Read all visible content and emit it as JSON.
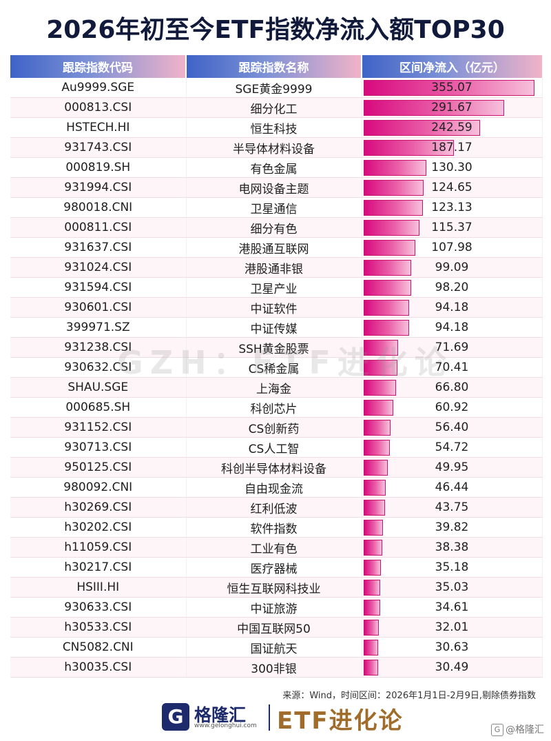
{
  "title": "2026年初至今ETF指数净流入额TOP30",
  "headers": {
    "code": "跟踪指数代码",
    "name": "跟踪指数名称",
    "value": "区间净流入（亿元）"
  },
  "chart_data": {
    "type": "table",
    "value_max": 355.07,
    "rows": [
      {
        "code": "Au9999.SGE",
        "name": "SGE黄金9999",
        "value": 355.07
      },
      {
        "code": "000813.CSI",
        "name": "细分化工",
        "value": 291.67
      },
      {
        "code": "HSTECH.HI",
        "name": "恒生科技",
        "value": 242.59
      },
      {
        "code": "931743.CSI",
        "name": "半导体材料设备",
        "value": 187.17
      },
      {
        "code": "000819.SH",
        "name": "有色金属",
        "value": 130.3
      },
      {
        "code": "931994.CSI",
        "name": "电网设备主题",
        "value": 124.65
      },
      {
        "code": "980018.CNI",
        "name": "卫星通信",
        "value": 123.13
      },
      {
        "code": "000811.CSI",
        "name": "细分有色",
        "value": 115.37
      },
      {
        "code": "931637.CSI",
        "name": "港股通互联网",
        "value": 107.98
      },
      {
        "code": "931024.CSI",
        "name": "港股通非银",
        "value": 99.09
      },
      {
        "code": "931594.CSI",
        "name": "卫星产业",
        "value": 98.2
      },
      {
        "code": "930601.CSI",
        "name": "中证软件",
        "value": 94.18
      },
      {
        "code": "399971.SZ",
        "name": "中证传媒",
        "value": 94.18
      },
      {
        "code": "931238.CSI",
        "name": "SSH黄金股票",
        "value": 71.69
      },
      {
        "code": "930632.CSI",
        "name": "CS稀金属",
        "value": 70.41
      },
      {
        "code": "SHAU.SGE",
        "name": "上海金",
        "value": 66.8
      },
      {
        "code": "000685.SH",
        "name": "科创芯片",
        "value": 60.92
      },
      {
        "code": "931152.CSI",
        "name": "CS创新药",
        "value": 56.4
      },
      {
        "code": "930713.CSI",
        "name": "CS人工智",
        "value": 54.72
      },
      {
        "code": "950125.CSI",
        "name": "科创半导体材料设备",
        "value": 49.95
      },
      {
        "code": "980092.CNI",
        "name": "自由现金流",
        "value": 46.44
      },
      {
        "code": "h30269.CSI",
        "name": "红利低波",
        "value": 43.75
      },
      {
        "code": "h30202.CSI",
        "name": "软件指数",
        "value": 39.82
      },
      {
        "code": "h11059.CSI",
        "name": "工业有色",
        "value": 38.38
      },
      {
        "code": "h30217.CSI",
        "name": "医疗器械",
        "value": 35.18
      },
      {
        "code": "HSIII.HI",
        "name": "恒生互联网科技业",
        "value": 35.03
      },
      {
        "code": "930633.CSI",
        "name": "中证旅游",
        "value": 34.61
      },
      {
        "code": "h30533.CSI",
        "name": "中国互联网50",
        "value": 32.01
      },
      {
        "code": "CN5082.CNI",
        "name": "国证航天",
        "value": 30.63
      },
      {
        "code": "h30035.CSI",
        "name": "300非银",
        "value": 30.49
      }
    ]
  },
  "watermark": "GZH：ETF进化论",
  "source": "来源：Wind，时间区间：2026年1月1日-2月9日,剔除债券指数",
  "footer": {
    "logo_mark": "G",
    "logo_name": "格隆汇",
    "logo_url": "www.gelonghui.com",
    "brand": "ETF进化论",
    "corner_mark": "G",
    "corner_text": "@格隆汇"
  },
  "colors": {
    "bar": "#d80a7f",
    "header_start": "#3f63c7",
    "header_end": "#f1b3c8",
    "title": "#111a3a"
  }
}
